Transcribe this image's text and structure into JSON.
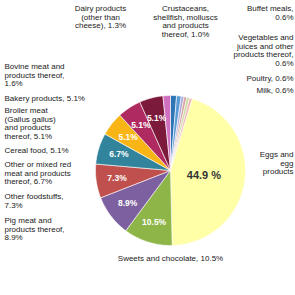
{
  "chart_data": {
    "type": "pie",
    "categories": [
      "Dairy products (other than cheese), 1.3%",
      "Crustaceans, shellfish, molluscs and products thereof, 1.0%",
      "Buffet meals, 0.6%",
      "Vegetables and juices and other products thereof, 0.6%",
      "Poultry, 0.6%",
      "Milk, 0.6%",
      "Eggs and egg products",
      "Sweets and chocolate, 10.5%",
      "Pig meat and products thereof, 8.9%",
      "Other foodstuffs, 7.3%",
      "Other or mixed red meat and products thereof, 6.7%",
      "Cereal food, 5.1%",
      "Broiler meat (Gallus gallus) and products thereof, 5.1%",
      "Bakery products, 5.1%",
      "Bovine meat and products thereof, 1.6%"
    ],
    "values": [
      1.3,
      1.0,
      0.6,
      0.6,
      0.6,
      0.6,
      44.9,
      10.5,
      8.9,
      7.3,
      6.7,
      5.1,
      5.1,
      5.1,
      1.6
    ],
    "value_labels": [
      null,
      null,
      null,
      null,
      null,
      null,
      "44.9 %",
      "10.5%",
      "8.9%",
      "7.3%",
      "6.7%",
      "5.1%",
      "5.1%",
      "5.1%",
      null
    ],
    "colors": [
      "#2e75b6",
      "#5b9bd5",
      "#a9a9d9",
      "#d9a0a0",
      "#c9d9a0",
      "#f2b2b2",
      "#ffffa8",
      "#8db547",
      "#7d60a0",
      "#c0504d",
      "#31849b",
      "#f9b515",
      "#b02a62",
      "#7b1a3a",
      "#d070c0"
    ],
    "data_labels": true
  }
}
